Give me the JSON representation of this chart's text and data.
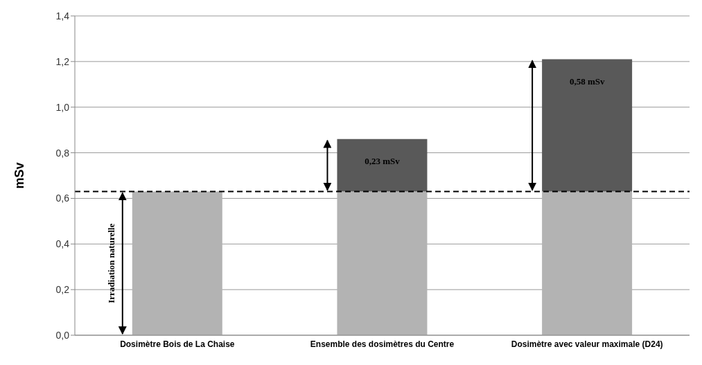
{
  "chart_data": {
    "type": "bar",
    "stacked": true,
    "ylabel": "mSv",
    "categories": [
      "Dosimètre Bois de La Chaise",
      "Ensemble des dosimètres du Centre",
      "Dosimètre avec valeur maximale (D24)"
    ],
    "series": [
      {
        "color": "#b3b3b3",
        "values": [
          0.63,
          0.63,
          0.63
        ]
      },
      {
        "color": "#595959",
        "values": [
          null,
          0.23,
          0.58
        ],
        "value_labels": [
          null,
          "0,23 mSv",
          "0,58 mSv"
        ]
      }
    ],
    "ylim": [
      0,
      1.4
    ],
    "yticks": [
      {
        "value": 0,
        "label": "0,0"
      },
      {
        "value": 0.2,
        "label": "0,2"
      },
      {
        "value": 0.4,
        "label": "0,4"
      },
      {
        "value": 0.6,
        "label": "0,6"
      },
      {
        "value": 0.8,
        "label": "0,8"
      },
      {
        "value": 1,
        "label": "1,0"
      },
      {
        "value": 1.2,
        "label": "1,2"
      },
      {
        "value": 1.4,
        "label": "1,4"
      }
    ],
    "grid": "y",
    "ref_lines": [
      {
        "axis": "y",
        "value": 0.63,
        "color": "#000000",
        "line_style": "dashed"
      }
    ],
    "annotations": [
      "Irradiation naturelle"
    ]
  }
}
